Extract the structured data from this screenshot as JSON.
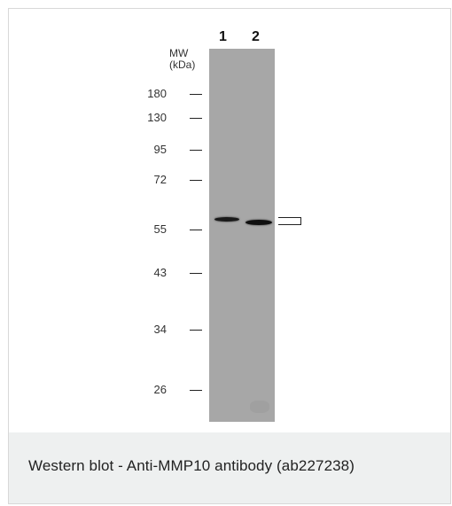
{
  "figure": {
    "mw_header": [
      "MW",
      "(kDa)"
    ],
    "lanes": [
      "1",
      "2"
    ],
    "markers": [
      {
        "label": "180",
        "kda": 180
      },
      {
        "label": "130",
        "kda": 130
      },
      {
        "label": "95",
        "kda": 95
      },
      {
        "label": "72",
        "kda": 72
      },
      {
        "label": "55",
        "kda": 55
      },
      {
        "label": "43",
        "kda": 43
      },
      {
        "label": "34",
        "kda": 34
      },
      {
        "label": "26",
        "kda": 26
      }
    ],
    "blot_color": "#a7a7a7",
    "band_color": "#111111"
  },
  "caption": "Western blot - Anti-MMP10 antibody (ab227238)"
}
